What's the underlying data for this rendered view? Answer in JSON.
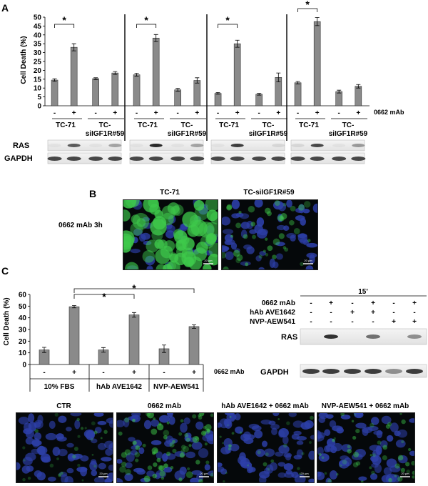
{
  "panel_letters": [
    "A",
    "B",
    "C"
  ],
  "treatment_label": "0662 mAb",
  "minus_sign": "-",
  "plus_sign": "+",
  "star": "*",
  "panel_a": {
    "ylabel": "Cell Death (%)",
    "yticks": [
      "0",
      "5",
      "10",
      "15",
      "20",
      "25",
      "30",
      "35",
      "40",
      "45",
      "50"
    ],
    "groups": [
      "TC-71",
      "TC-\nsiIGF1R#59"
    ],
    "blot_labels": [
      "RAS",
      "GAPDH"
    ]
  },
  "panel_b": {
    "titles": [
      "TC-71",
      "TC-siIGF1R#59"
    ],
    "row_label": "0662 mAb 3h",
    "scale_bar": "20 µm"
  },
  "panel_c": {
    "ylabel": "Cell Death (%)",
    "yticks": [
      "0",
      "10",
      "20",
      "30",
      "40",
      "50",
      "60"
    ],
    "groups": [
      "10% FBS",
      "hAb AVE1642",
      "NVP-AEW541"
    ],
    "time_label": "15'",
    "row_labels": [
      "0662 mAb",
      "hAb AVE1642",
      "NVP-AEW541"
    ],
    "blot_labels": [
      "RAS",
      "GAPDH"
    ],
    "image_titles": [
      "CTR",
      "0662 mAb",
      "hAb AVE1642 + 0662 mAb",
      "NVP-AEW541 + 0662 mAb"
    ],
    "scale_bar": "20 µm"
  },
  "chart_data": [
    {
      "type": "bar",
      "panel": "A",
      "subplots": [
        {
          "conditions": [
            "TC-71 -",
            "TC-71 +",
            "TC-siIGF1R#59 -",
            "TC-siIGF1R#59 +"
          ],
          "values": [
            14.5,
            33,
            15.3,
            18.5
          ],
          "errors": [
            0.7,
            2,
            0.5,
            0.8
          ]
        },
        {
          "conditions": [
            "TC-71 -",
            "TC-71 +",
            "TC-siIGF1R#59 -",
            "TC-siIGF1R#59 +"
          ],
          "values": [
            17.5,
            38.2,
            9,
            14.3
          ],
          "errors": [
            0.8,
            2,
            0.8,
            1.5
          ]
        },
        {
          "conditions": [
            "TC-71 -",
            "TC-71 +",
            "TC-siIGF1R#59 -",
            "TC-siIGF1R#59 +"
          ],
          "values": [
            7,
            35,
            6.5,
            16
          ],
          "errors": [
            0.5,
            2,
            0.5,
            2.5
          ]
        },
        {
          "conditions": [
            "TC-71 -",
            "TC-71 +",
            "TC-siIGF1R#59 -",
            "TC-siIGF1R#59 +"
          ],
          "values": [
            13,
            47.5,
            8,
            11
          ],
          "errors": [
            0.7,
            2.3,
            0.8,
            1
          ]
        }
      ],
      "ylabel": "Cell Death (%)",
      "ylim": [
        0,
        50
      ],
      "significance": "*"
    },
    {
      "type": "bar",
      "panel": "C",
      "conditions": [
        "10% FBS -",
        "10% FBS +",
        "hAb AVE1642 -",
        "hAb AVE1642 +",
        "NVP-AEW541 -",
        "NVP-AEW541 +"
      ],
      "values": [
        12.5,
        49.5,
        12.5,
        42.5,
        13.5,
        32.5
      ],
      "errors": [
        2.2,
        1,
        2,
        2,
        3.2,
        1.5
      ],
      "ylabel": "Cell Death (%)",
      "ylim": [
        0,
        60
      ],
      "significance": "*"
    }
  ],
  "colors": {
    "bar": "#8a8a8a",
    "bar_edge": "#333333",
    "membrane": "#ececec",
    "band": "#1e1e1e",
    "cells_green": "#3ec94b",
    "nuclei_blue": "#2d3fa8"
  }
}
